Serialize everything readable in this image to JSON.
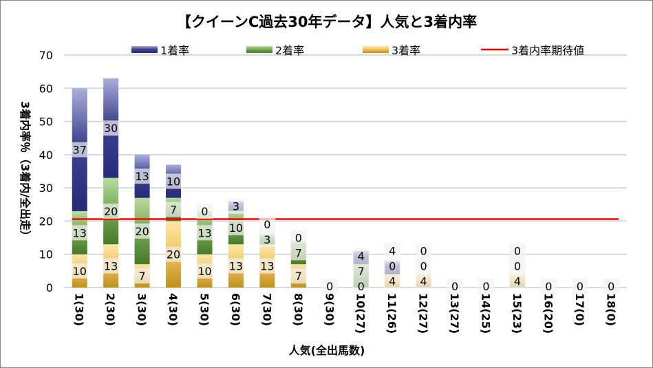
{
  "chart_data": {
    "type": "bar",
    "stacked": true,
    "title": "【クイーンC過去30年データ】人気と3着内率",
    "xlabel": "人気(全出馬数)",
    "ylabel": "3着内率％（3着内/全出走）",
    "ylim": [
      0,
      70
    ],
    "yticks": [
      0,
      10,
      20,
      30,
      40,
      50,
      60,
      70
    ],
    "grid": true,
    "legend_position": "top",
    "categories": [
      "1(30)",
      "2(30)",
      "3(30)",
      "4(30)",
      "5(30)",
      "6(30)",
      "7(30)",
      "8(30)",
      "9(30)",
      "10(27)",
      "11(26)",
      "12(27)",
      "13(27)",
      "14(25)",
      "15(23)",
      "16(20)",
      "17(0)",
      "18(0)"
    ],
    "series": [
      {
        "name": "3着率",
        "color": "#d9a52e",
        "values": [
          10,
          13,
          7,
          20,
          10,
          13,
          13,
          7,
          0,
          0,
          4,
          4,
          0,
          0,
          4,
          0,
          0,
          0
        ]
      },
      {
        "name": "2着率",
        "color": "#6a9a45",
        "values": [
          13,
          20,
          20,
          7,
          13,
          10,
          3,
          7,
          0,
          7,
          0,
          0,
          0,
          0,
          0,
          0,
          0,
          0
        ]
      },
      {
        "name": "1着率",
        "color": "#4a4f9a",
        "values": [
          37,
          30,
          13,
          10,
          0,
          3,
          0,
          0,
          0,
          4,
          4,
          0,
          0,
          0,
          0,
          0,
          0,
          0
        ]
      }
    ],
    "reference_line": {
      "name": "3着内率期待値",
      "value": 20.6,
      "color": "#ff0000"
    }
  }
}
